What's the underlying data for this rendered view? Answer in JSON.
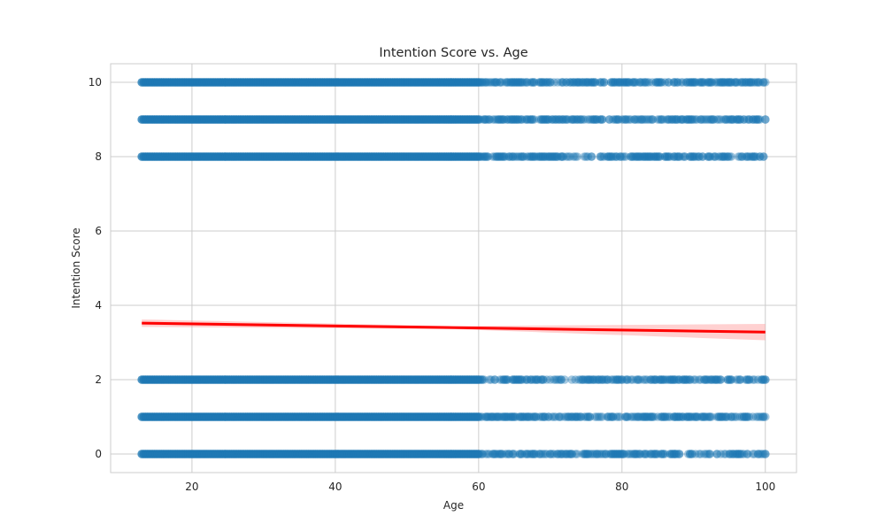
{
  "chart_data": {
    "type": "scatter",
    "title": "Intention Score vs. Age",
    "xlabel": "Age",
    "ylabel": "Intention Score",
    "xlim": [
      8.65,
      104.35
    ],
    "ylim": [
      -0.5,
      10.5
    ],
    "x_ticks": [
      20,
      40,
      60,
      80,
      100
    ],
    "y_ticks": [
      0,
      2,
      4,
      6,
      8,
      10
    ],
    "grid": true,
    "x_data_range": [
      13,
      100
    ],
    "score_levels": [
      0,
      1,
      2,
      8,
      9,
      10
    ],
    "point_color": "#1f77b4",
    "point_alpha": 0.4,
    "regression": {
      "color": "#ff0000",
      "ci_color": "#ff9999",
      "start": [
        13,
        3.52
      ],
      "end": [
        100,
        3.28
      ],
      "ci_halfwidth_start": 0.1,
      "ci_halfwidth_mid": 0.04,
      "ci_halfwidth_end": 0.22
    }
  }
}
